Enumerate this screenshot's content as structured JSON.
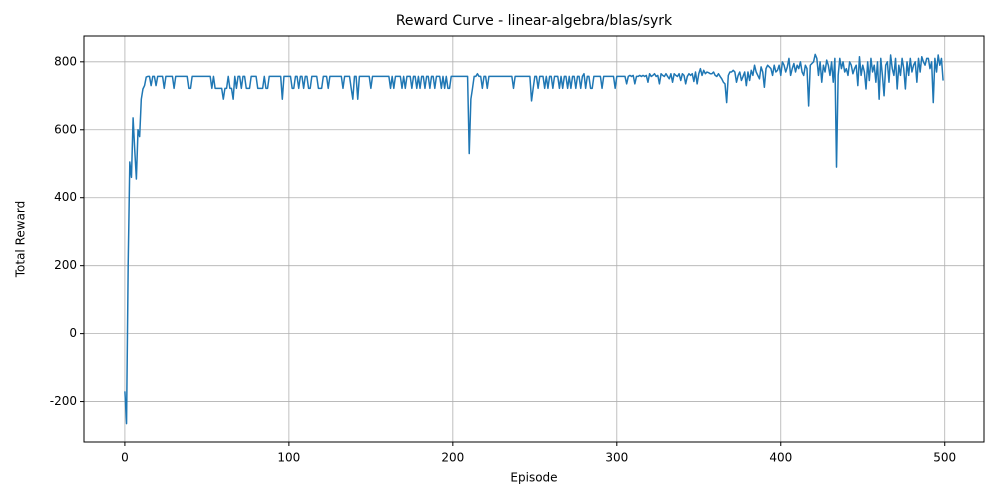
{
  "chart_data": {
    "type": "line",
    "title": "Reward Curve - linear-algebra/blas/syrk",
    "xlabel": "Episode",
    "ylabel": "Total Reward",
    "color": "#1f77b4",
    "grid": true,
    "xlim": [
      -24.95,
      523.95
    ],
    "ylim": [
      -319,
      876
    ],
    "xticks": [
      0,
      100,
      200,
      300,
      400,
      500
    ],
    "yticks": [
      -200,
      0,
      200,
      400,
      600,
      800
    ],
    "x": [
      0,
      1,
      2,
      3,
      4,
      5,
      6,
      7,
      8,
      9,
      10,
      11,
      12,
      13,
      14,
      15,
      16,
      17,
      18,
      19,
      20,
      21,
      22,
      23,
      24,
      25,
      26,
      27,
      28,
      29,
      30,
      31,
      32,
      33,
      34,
      35,
      36,
      37,
      38,
      39,
      40,
      41,
      42,
      43,
      44,
      45,
      46,
      47,
      48,
      49,
      50,
      51,
      52,
      53,
      54,
      55,
      56,
      57,
      58,
      59,
      60,
      61,
      62,
      63,
      64,
      65,
      66,
      67,
      68,
      69,
      70,
      71,
      72,
      73,
      74,
      75,
      76,
      77,
      78,
      79,
      80,
      81,
      82,
      83,
      84,
      85,
      86,
      87,
      88,
      89,
      90,
      91,
      92,
      93,
      94,
      95,
      96,
      97,
      98,
      99,
      100,
      101,
      102,
      103,
      104,
      105,
      106,
      107,
      108,
      109,
      110,
      111,
      112,
      113,
      114,
      115,
      116,
      117,
      118,
      119,
      120,
      121,
      122,
      123,
      124,
      125,
      126,
      127,
      128,
      129,
      130,
      131,
      132,
      133,
      134,
      135,
      136,
      137,
      138,
      139,
      140,
      141,
      142,
      143,
      144,
      145,
      146,
      147,
      148,
      149,
      150,
      151,
      152,
      153,
      154,
      155,
      156,
      157,
      158,
      159,
      160,
      161,
      162,
      163,
      164,
      165,
      166,
      167,
      168,
      169,
      170,
      171,
      172,
      173,
      174,
      175,
      176,
      177,
      178,
      179,
      180,
      181,
      182,
      183,
      184,
      185,
      186,
      187,
      188,
      189,
      190,
      191,
      192,
      193,
      194,
      195,
      196,
      197,
      198,
      199,
      200,
      201,
      202,
      203,
      204,
      205,
      206,
      207,
      208,
      209,
      210,
      211,
      212,
      213,
      214,
      215,
      216,
      217,
      218,
      219,
      220,
      221,
      222,
      223,
      224,
      225,
      226,
      227,
      228,
      229,
      230,
      231,
      232,
      233,
      234,
      235,
      236,
      237,
      238,
      239,
      240,
      241,
      242,
      243,
      244,
      245,
      246,
      247,
      248,
      249,
      250,
      251,
      252,
      253,
      254,
      255,
      256,
      257,
      258,
      259,
      260,
      261,
      262,
      263,
      264,
      265,
      266,
      267,
      268,
      269,
      270,
      271,
      272,
      273,
      274,
      275,
      276,
      277,
      278,
      279,
      280,
      281,
      282,
      283,
      284,
      285,
      286,
      287,
      288,
      289,
      290,
      291,
      292,
      293,
      294,
      295,
      296,
      297,
      298,
      299,
      300,
      301,
      302,
      303,
      304,
      305,
      306,
      307,
      308,
      309,
      310,
      311,
      312,
      313,
      314,
      315,
      316,
      317,
      318,
      319,
      320,
      321,
      322,
      323,
      324,
      325,
      326,
      327,
      328,
      329,
      330,
      331,
      332,
      333,
      334,
      335,
      336,
      337,
      338,
      339,
      340,
      341,
      342,
      343,
      344,
      345,
      346,
      347,
      348,
      349,
      350,
      351,
      352,
      353,
      354,
      355,
      356,
      357,
      358,
      359,
      360,
      361,
      362,
      363,
      364,
      365,
      366,
      367,
      368,
      369,
      370,
      371,
      372,
      373,
      374,
      375,
      376,
      377,
      378,
      379,
      380,
      381,
      382,
      383,
      384,
      385,
      386,
      387,
      388,
      389,
      390,
      391,
      392,
      393,
      394,
      395,
      396,
      397,
      398,
      399,
      400,
      401,
      402,
      403,
      404,
      405,
      406,
      407,
      408,
      409,
      410,
      411,
      412,
      413,
      414,
      415,
      416,
      417,
      418,
      419,
      420,
      421,
      422,
      423,
      424,
      425,
      426,
      427,
      428,
      429,
      430,
      431,
      432,
      433,
      434,
      435,
      436,
      437,
      438,
      439,
      440,
      441,
      442,
      443,
      444,
      445,
      446,
      447,
      448,
      449,
      450,
      451,
      452,
      453,
      454,
      455,
      456,
      457,
      458,
      459,
      460,
      461,
      462,
      463,
      464,
      465,
      466,
      467,
      468,
      469,
      470,
      471,
      472,
      473,
      474,
      475,
      476,
      477,
      478,
      479,
      480,
      481,
      482,
      483,
      484,
      485,
      486,
      487,
      488,
      489,
      490,
      491,
      492,
      493,
      494,
      495,
      496,
      497,
      498,
      499
    ],
    "values": [
      -170,
      -265,
      200,
      505,
      460,
      635,
      540,
      455,
      600,
      580,
      690,
      720,
      730,
      755,
      757,
      757,
      730,
      757,
      757,
      730,
      757,
      757,
      757,
      757,
      722,
      757,
      757,
      757,
      757,
      757,
      722,
      757,
      757,
      757,
      757,
      757,
      757,
      757,
      757,
      722,
      722,
      757,
      757,
      757,
      757,
      757,
      757,
      757,
      757,
      757,
      757,
      757,
      757,
      722,
      757,
      722,
      722,
      722,
      722,
      722,
      690,
      722,
      722,
      757,
      722,
      722,
      690,
      757,
      722,
      757,
      757,
      722,
      757,
      757,
      722,
      722,
      722,
      757,
      757,
      757,
      757,
      722,
      722,
      722,
      722,
      757,
      722,
      722,
      757,
      757,
      757,
      757,
      757,
      757,
      757,
      757,
      690,
      757,
      757,
      757,
      757,
      757,
      722,
      722,
      757,
      757,
      722,
      757,
      757,
      722,
      757,
      757,
      722,
      722,
      757,
      757,
      757,
      757,
      722,
      722,
      722,
      757,
      757,
      757,
      722,
      757,
      757,
      757,
      757,
      757,
      757,
      757,
      757,
      722,
      757,
      757,
      757,
      757,
      722,
      690,
      757,
      757,
      690,
      757,
      757,
      757,
      757,
      757,
      757,
      757,
      722,
      757,
      757,
      757,
      757,
      757,
      757,
      757,
      757,
      757,
      757,
      757,
      722,
      757,
      722,
      757,
      757,
      757,
      757,
      722,
      757,
      722,
      757,
      757,
      757,
      722,
      757,
      757,
      722,
      757,
      722,
      757,
      757,
      722,
      757,
      757,
      722,
      757,
      757,
      722,
      757,
      757,
      757,
      722,
      757,
      722,
      757,
      722,
      722,
      757,
      757,
      757,
      757,
      757,
      757,
      757,
      757,
      757,
      757,
      757,
      530,
      690,
      722,
      757,
      757,
      765,
      757,
      757,
      722,
      757,
      757,
      722,
      757,
      757,
      757,
      757,
      757,
      757,
      757,
      757,
      757,
      757,
      757,
      757,
      757,
      757,
      757,
      722,
      757,
      757,
      757,
      757,
      757,
      757,
      757,
      757,
      757,
      757,
      685,
      722,
      757,
      757,
      722,
      757,
      757,
      757,
      722,
      757,
      722,
      757,
      757,
      722,
      757,
      757,
      757,
      722,
      757,
      722,
      757,
      757,
      722,
      757,
      722,
      757,
      757,
      722,
      757,
      757,
      722,
      757,
      765,
      722,
      757,
      757,
      722,
      722,
      757,
      757,
      757,
      757,
      757,
      722,
      757,
      757,
      757,
      757,
      757,
      757,
      757,
      722,
      757,
      757,
      757,
      757,
      757,
      757,
      735,
      757,
      760,
      757,
      760,
      735,
      757,
      757,
      760,
      757,
      760,
      757,
      760,
      740,
      765,
      757,
      760,
      765,
      757,
      760,
      735,
      765,
      760,
      757,
      765,
      757,
      750,
      765,
      740,
      765,
      760,
      757,
      765,
      745,
      765,
      760,
      735,
      757,
      765,
      760,
      765,
      742,
      770,
      735,
      765,
      780,
      760,
      775,
      765,
      770,
      768,
      765,
      765,
      770,
      760,
      757,
      765,
      757,
      750,
      740,
      735,
      680,
      760,
      770,
      770,
      775,
      770,
      740,
      760,
      770,
      745,
      757,
      770,
      730,
      770,
      745,
      775,
      760,
      790,
      770,
      760,
      750,
      785,
      770,
      725,
      780,
      790,
      785,
      780,
      760,
      790,
      770,
      775,
      790,
      760,
      800,
      790,
      770,
      785,
      810,
      760,
      780,
      795,
      770,
      790,
      780,
      800,
      770,
      760,
      790,
      780,
      670,
      790,
      795,
      800,
      822,
      810,
      760,
      800,
      740,
      790,
      770,
      805,
      790,
      760,
      800,
      740,
      810,
      490,
      760,
      810,
      780,
      800,
      770,
      780,
      760,
      800,
      790,
      765,
      780,
      790,
      730,
      815,
      760,
      790,
      770,
      720,
      800,
      745,
      810,
      770,
      790,
      740,
      800,
      690,
      810,
      760,
      700,
      790,
      800,
      740,
      820,
      780,
      760,
      810,
      720,
      790,
      760,
      810,
      780,
      720,
      800,
      760,
      810,
      770,
      790,
      800,
      740,
      810,
      770,
      815,
      800,
      790,
      810,
      810,
      780,
      800,
      680,
      810,
      770,
      820,
      790,
      810,
      745
    ]
  }
}
